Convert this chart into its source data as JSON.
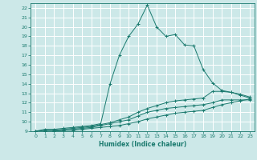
{
  "xlabel": "Humidex (Indice chaleur)",
  "ylabel": "",
  "background_color": "#cce8e8",
  "grid_color": "#ffffff",
  "line_color": "#1a7a6e",
  "xlim": [
    -0.5,
    23.5
  ],
  "ylim": [
    9,
    22.5
  ],
  "xticks": [
    0,
    1,
    2,
    3,
    4,
    5,
    6,
    7,
    8,
    9,
    10,
    11,
    12,
    13,
    14,
    15,
    16,
    17,
    18,
    19,
    20,
    21,
    22,
    23
  ],
  "yticks": [
    9,
    10,
    11,
    12,
    13,
    14,
    15,
    16,
    17,
    18,
    19,
    20,
    21,
    22
  ],
  "lines": [
    {
      "x": [
        0,
        1,
        2,
        3,
        4,
        5,
        6,
        7,
        8,
        9,
        10,
        11,
        12,
        13,
        14,
        15,
        16,
        17,
        18,
        19,
        20,
        21,
        22,
        23
      ],
      "y": [
        9,
        9.2,
        9.2,
        9.3,
        9.4,
        9.5,
        9.6,
        9.8,
        14.0,
        17.0,
        19.0,
        20.3,
        22.3,
        20.0,
        19.0,
        19.2,
        18.1,
        18.0,
        15.5,
        14.1,
        13.3,
        13.1,
        12.8,
        12.5
      ]
    },
    {
      "x": [
        0,
        1,
        2,
        3,
        4,
        5,
        6,
        7,
        8,
        9,
        10,
        11,
        12,
        13,
        14,
        15,
        16,
        17,
        18,
        19,
        20,
        21,
        22,
        23
      ],
      "y": [
        9,
        9.1,
        9.1,
        9.2,
        9.3,
        9.4,
        9.5,
        9.7,
        9.9,
        10.2,
        10.5,
        11.0,
        11.4,
        11.7,
        12.0,
        12.2,
        12.3,
        12.4,
        12.5,
        13.2,
        13.2,
        13.1,
        12.9,
        12.6
      ]
    },
    {
      "x": [
        0,
        1,
        2,
        3,
        4,
        5,
        6,
        7,
        8,
        9,
        10,
        11,
        12,
        13,
        14,
        15,
        16,
        17,
        18,
        19,
        20,
        21,
        22,
        23
      ],
      "y": [
        9,
        9.0,
        9.0,
        9.1,
        9.2,
        9.3,
        9.4,
        9.6,
        9.8,
        10.0,
        10.2,
        10.6,
        11.0,
        11.2,
        11.4,
        11.5,
        11.6,
        11.7,
        11.8,
        12.0,
        12.3,
        12.3,
        12.3,
        12.3
      ]
    },
    {
      "x": [
        0,
        1,
        2,
        3,
        4,
        5,
        6,
        7,
        8,
        9,
        10,
        11,
        12,
        13,
        14,
        15,
        16,
        17,
        18,
        19,
        20,
        21,
        22,
        23
      ],
      "y": [
        9,
        9.0,
        9.0,
        9.1,
        9.1,
        9.2,
        9.3,
        9.4,
        9.5,
        9.6,
        9.8,
        10.0,
        10.3,
        10.5,
        10.7,
        10.9,
        11.0,
        11.1,
        11.2,
        11.5,
        11.8,
        12.0,
        12.2,
        12.4
      ]
    }
  ]
}
